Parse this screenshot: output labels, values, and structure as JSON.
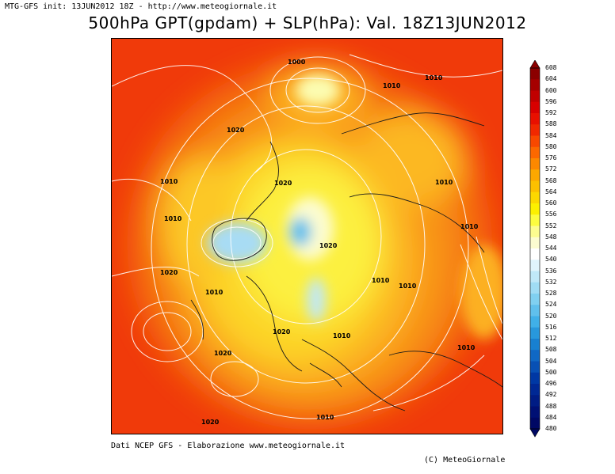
{
  "header": {
    "init_line": "MTG-GFS init: 13JUN2012 18Z - http://www.meteogiornale.it",
    "title": "500hPa GPT(gpdam) + SLP(hPa): Val. 18Z13JUN2012"
  },
  "map": {
    "isobar_labels": [
      {
        "text": "1000"
      },
      {
        "text": "1010"
      },
      {
        "text": "1010"
      },
      {
        "text": "1020"
      },
      {
        "text": "1010"
      },
      {
        "text": "1020"
      },
      {
        "text": "1010"
      },
      {
        "text": "1010"
      },
      {
        "text": "1020"
      },
      {
        "text": "1020"
      },
      {
        "text": "1010"
      },
      {
        "text": "1010"
      },
      {
        "text": "1010"
      },
      {
        "text": "1020"
      },
      {
        "text": "1010"
      },
      {
        "text": "1010"
      },
      {
        "text": "1020"
      },
      {
        "text": "1010"
      },
      {
        "text": "1020"
      },
      {
        "text": "1010"
      }
    ]
  },
  "colorbar": {
    "levels": [
      "608",
      "604",
      "600",
      "596",
      "592",
      "588",
      "584",
      "580",
      "576",
      "572",
      "568",
      "564",
      "560",
      "556",
      "552",
      "548",
      "544",
      "540",
      "536",
      "532",
      "528",
      "524",
      "520",
      "516",
      "512",
      "508",
      "504",
      "500",
      "496",
      "492",
      "488",
      "484",
      "480"
    ],
    "colors": [
      "#8b0000",
      "#a50000",
      "#c00000",
      "#d80000",
      "#e81000",
      "#f02800",
      "#f84800",
      "#fc6800",
      "#fc8800",
      "#fca800",
      "#fcc000",
      "#fcd800",
      "#fcf000",
      "#fcfc40",
      "#fcfc90",
      "#fcfcd0",
      "#ffffff",
      "#e0f4fc",
      "#c0e8f8",
      "#a0dcf4",
      "#80d0f0",
      "#60c0ec",
      "#40b0e8",
      "#2898dc",
      "#1880d0",
      "#1068c4",
      "#0850b4",
      "#0038a4",
      "#002894",
      "#001c84",
      "#001074",
      "#000864"
    ]
  },
  "footer": {
    "credit": "Dati NCEP GFS - Elaborazione www.meteogiornale.it",
    "copyright": "(C) MeteoGiornale"
  }
}
